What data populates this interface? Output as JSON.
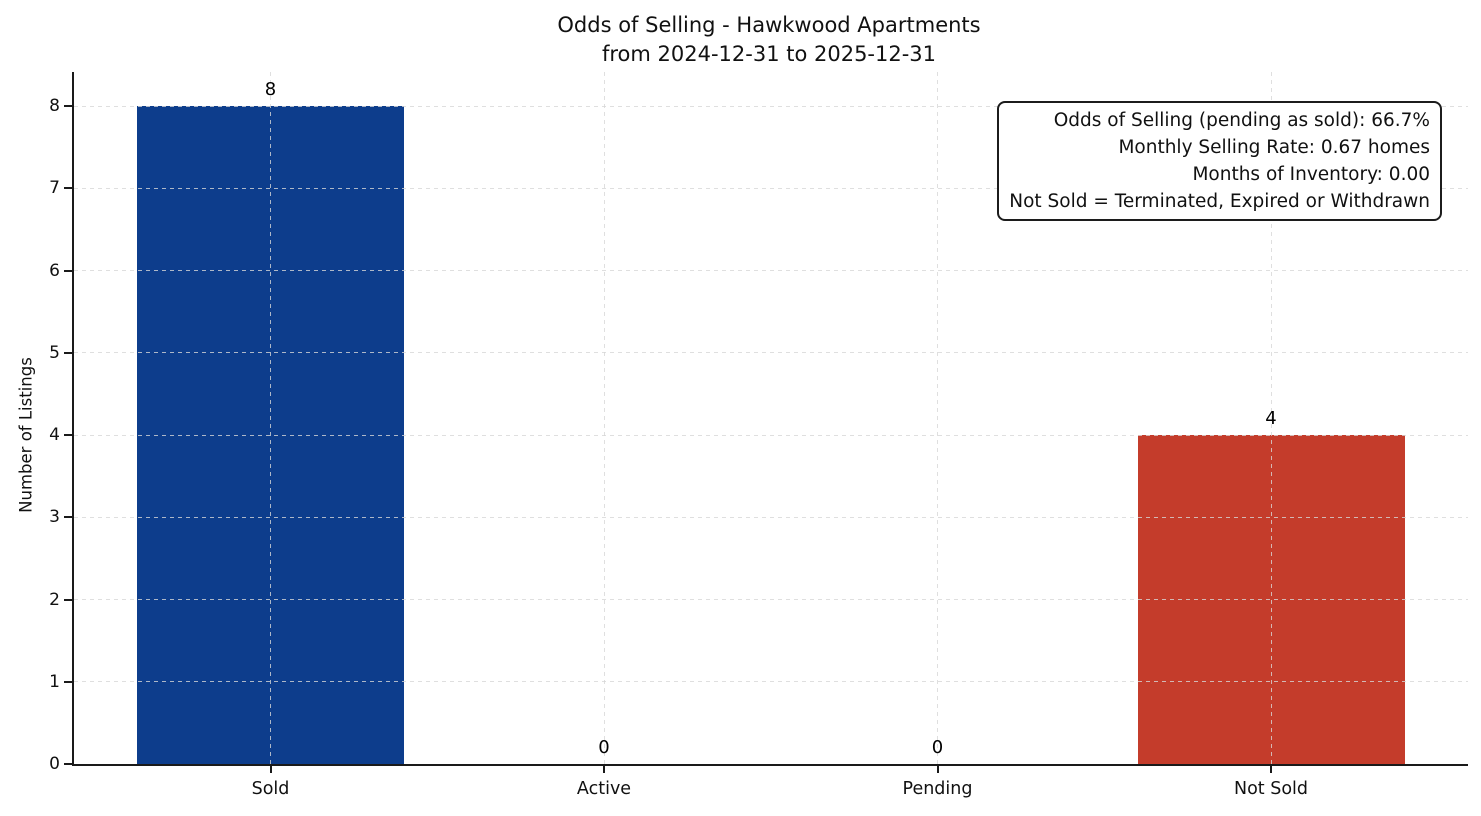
{
  "chart_data": {
    "type": "bar",
    "title": "Odds of Selling - Hawkwood Apartments\nfrom 2024-12-31 to 2025-12-31",
    "title_lines": [
      "Odds of Selling - Hawkwood Apartments",
      "from 2024-12-31 to 2025-12-31"
    ],
    "categories": [
      "Sold",
      "Active",
      "Pending",
      "Not Sold"
    ],
    "values": [
      8,
      0,
      0,
      4
    ],
    "bar_colors": [
      "#0d3d8c",
      null,
      null,
      "#c43c2b"
    ],
    "xlabel": "",
    "ylabel": "Number of Listings",
    "ylim": [
      0,
      8.4
    ],
    "yticks": [
      0,
      1,
      2,
      3,
      4,
      5,
      6,
      7,
      8
    ],
    "grid": "dashed, both axes",
    "legend": "none",
    "annotation": {
      "position": "top-right",
      "lines": [
        "Odds of Selling (pending as sold): 66.7%",
        "Monthly Selling Rate: 0.67 homes",
        "Months of Inventory: 0.00",
        "Not Sold = Terminated, Expired or Withdrawn"
      ]
    }
  }
}
